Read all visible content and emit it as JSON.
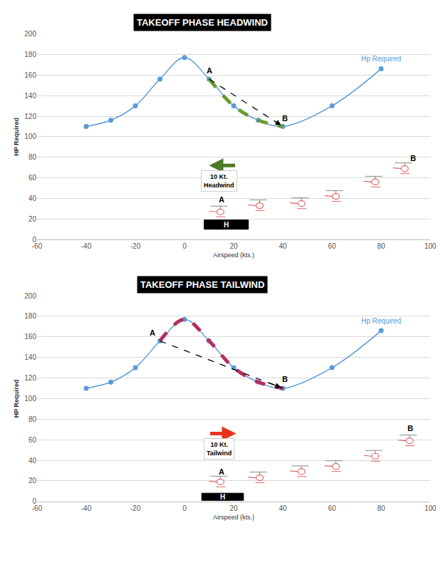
{
  "chart_data": [
    {
      "type": "line",
      "title": "TAKEOFF PHASE HEADWIND",
      "x_label": "Airspeed (kts.)",
      "y_label": "HP Required",
      "x": [
        -40,
        -30,
        -20,
        -10,
        0,
        10,
        20,
        30,
        40,
        60,
        80
      ],
      "series": [
        {
          "name": "Hp Required",
          "color": "#5b9bd5",
          "values": [
            110,
            116,
            130,
            156,
            177,
            156,
            130,
            116,
            110,
            130,
            166
          ],
          "marker": "circle",
          "line_style": "solid"
        }
      ],
      "xlim": [
        -60,
        100
      ],
      "ylim": [
        0,
        200
      ],
      "xticks": [
        -60,
        -40,
        -20,
        0,
        20,
        40,
        60,
        80,
        100
      ],
      "yticks": [
        0,
        20,
        40,
        60,
        80,
        100,
        120,
        140,
        160,
        180,
        200
      ],
      "grid": true,
      "path_highlight": {
        "x": [
          10,
          20,
          30,
          40
        ],
        "values": [
          156,
          130,
          116,
          110
        ],
        "color": "#6b9a35",
        "line_style": "dash"
      },
      "climb_arrow": {
        "from": [
          10,
          156
        ],
        "to": [
          40,
          110
        ],
        "color": "#000000",
        "line_style": "dash"
      },
      "labels": [
        {
          "text": "A",
          "x": 10,
          "y": 164
        },
        {
          "text": "B",
          "x": 41,
          "y": 118
        },
        {
          "text": "A",
          "x": 15,
          "y": 39
        },
        {
          "text": "B",
          "x": 93,
          "y": 79
        }
      ],
      "wind": {
        "text": "10 Kt.\nHeadwind",
        "from": [
          21,
          72
        ],
        "to": [
          10,
          72
        ],
        "text_at": [
          14,
          57
        ],
        "color": "#4e7a27"
      },
      "helipad": {
        "text": "H",
        "x": [
          8,
          26
        ],
        "y": [
          10,
          19
        ]
      },
      "helicopters": {
        "x": [
          14,
          30,
          47,
          61,
          77,
          89
        ],
        "y": [
          27,
          33,
          35,
          42,
          56,
          69
        ],
        "color": "#e06666"
      }
    },
    {
      "type": "line",
      "title": "TAKEOFF PHASE TAILWIND",
      "x_label": "Airspeed (kts.)",
      "y_label": "HP Required",
      "x": [
        -40,
        -30,
        -20,
        -10,
        0,
        10,
        20,
        30,
        40,
        60,
        80
      ],
      "series": [
        {
          "name": "Hp Required",
          "color": "#5b9bd5",
          "values": [
            110,
            116,
            130,
            156,
            177,
            156,
            130,
            116,
            110,
            130,
            166
          ],
          "marker": "circle",
          "line_style": "solid"
        }
      ],
      "xlim": [
        -60,
        100
      ],
      "ylim": [
        0,
        200
      ],
      "xticks": [
        -60,
        -40,
        -20,
        0,
        20,
        40,
        60,
        80,
        100
      ],
      "yticks": [
        0,
        20,
        40,
        60,
        80,
        100,
        120,
        140,
        160,
        180,
        200
      ],
      "grid": true,
      "path_highlight": {
        "x": [
          -10,
          0,
          10,
          20,
          30,
          40
        ],
        "values": [
          156,
          177,
          156,
          130,
          116,
          110
        ],
        "color": "#b5305f",
        "line_style": "dash"
      },
      "climb_arrow": {
        "from": [
          -10,
          156
        ],
        "to": [
          40,
          110
        ],
        "color": "#000000",
        "line_style": "dash"
      },
      "labels": [
        {
          "text": "A",
          "x": -13,
          "y": 164
        },
        {
          "text": "B",
          "x": 41,
          "y": 119
        },
        {
          "text": "A",
          "x": 15,
          "y": 29
        },
        {
          "text": "B",
          "x": 92,
          "y": 71
        }
      ],
      "wind": {
        "text": "10 Kt.\nTailwind",
        "from": [
          10,
          66
        ],
        "to": [
          21,
          66
        ],
        "text_at": [
          14,
          51
        ],
        "color": "#e8321e"
      },
      "helipad": {
        "text": "H",
        "x": [
          7,
          24
        ],
        "y": [
          1,
          8
        ]
      },
      "helicopters": {
        "x": [
          14,
          30,
          47,
          61,
          77,
          91
        ],
        "y": [
          19,
          23,
          29,
          34,
          44,
          59
        ],
        "color": "#e06666"
      }
    }
  ]
}
